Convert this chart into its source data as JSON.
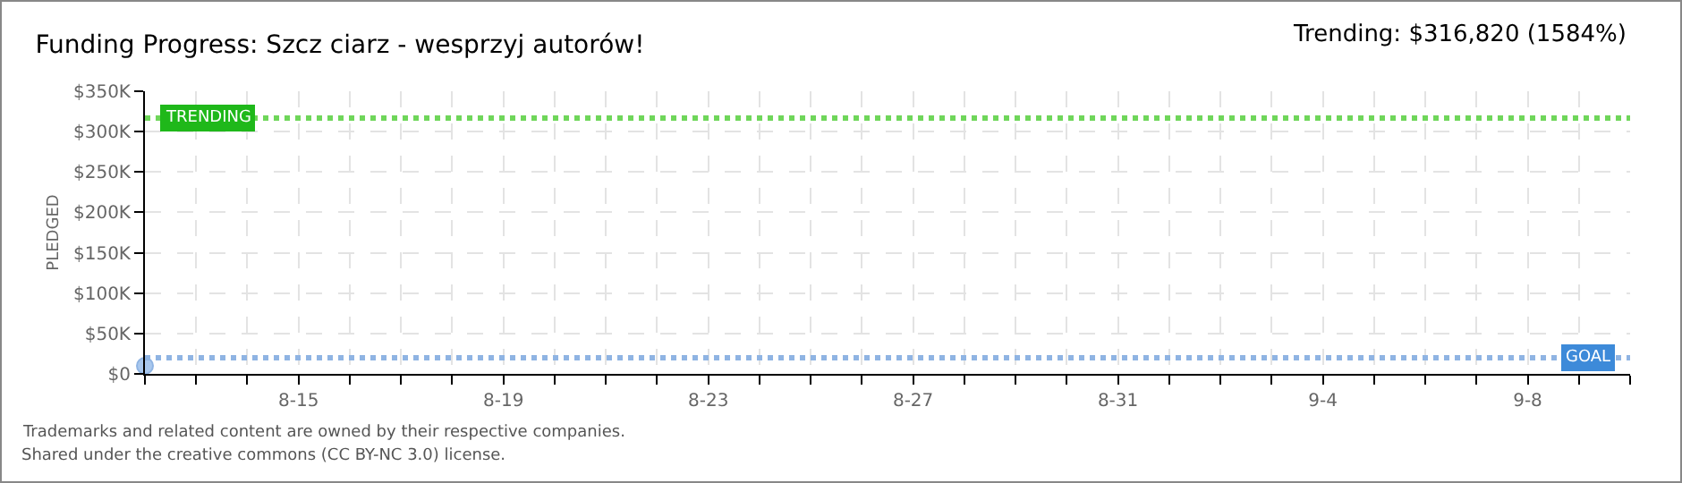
{
  "chart_data": {
    "type": "line",
    "title": "Funding Progress: Szcz ciarz - wesprzyj autorów!",
    "ylabel": "PLEDGED",
    "x": [
      "--08-12"
    ],
    "series": [
      {
        "color": "#a9c8ee",
        "values": [
          10000
        ]
      }
    ],
    "marker": "circle",
    "xlim": [
      "--08-12",
      "--09-10"
    ],
    "xticks": [
      {
        "value": "--08-12",
        "label": null
      },
      {
        "value": "--08-13",
        "label": null
      },
      {
        "value": "--08-14",
        "label": null
      },
      {
        "value": "--08-15",
        "label": "8-15"
      },
      {
        "value": "--08-16",
        "label": null
      },
      {
        "value": "--08-17",
        "label": null
      },
      {
        "value": "--08-18",
        "label": null
      },
      {
        "value": "--08-19",
        "label": "8-19"
      },
      {
        "value": "--08-20",
        "label": null
      },
      {
        "value": "--08-21",
        "label": null
      },
      {
        "value": "--08-22",
        "label": null
      },
      {
        "value": "--08-23",
        "label": "8-23"
      },
      {
        "value": "--08-24",
        "label": null
      },
      {
        "value": "--08-25",
        "label": null
      },
      {
        "value": "--08-26",
        "label": null
      },
      {
        "value": "--08-27",
        "label": "8-27"
      },
      {
        "value": "--08-28",
        "label": null
      },
      {
        "value": "--08-29",
        "label": null
      },
      {
        "value": "--08-30",
        "label": null
      },
      {
        "value": "--08-31",
        "label": "8-31"
      },
      {
        "value": "--09-01",
        "label": null
      },
      {
        "value": "--09-02",
        "label": null
      },
      {
        "value": "--09-03",
        "label": null
      },
      {
        "value": "--09-04",
        "label": "9-4"
      },
      {
        "value": "--09-05",
        "label": null
      },
      {
        "value": "--09-06",
        "label": null
      },
      {
        "value": "--09-07",
        "label": null
      },
      {
        "value": "--09-08",
        "label": "9-8"
      },
      {
        "value": "--09-09",
        "label": null
      },
      {
        "value": "--09-10",
        "label": null
      }
    ],
    "ylim": [
      0,
      350000
    ],
    "yticks": [
      {
        "value": 0,
        "label": "$0"
      },
      {
        "value": 50000,
        "label": "$50K"
      },
      {
        "value": 100000,
        "label": "$100K"
      },
      {
        "value": 150000,
        "label": "$150K"
      },
      {
        "value": 200000,
        "label": "$200K"
      },
      {
        "value": 250000,
        "label": "$250K"
      },
      {
        "value": 300000,
        "label": "$300K"
      },
      {
        "value": 350000,
        "label": "$350K"
      }
    ],
    "grid": true,
    "ref_lines": [
      {
        "axis": "y",
        "value": 316820,
        "label": "TRENDING",
        "color": "#6fd65a",
        "line_style": "dotted"
      },
      {
        "axis": "y",
        "value": 20000,
        "label": "GOAL",
        "color": "#8fb4e3",
        "line_style": "dotted"
      }
    ],
    "annotations": [
      "Trending: $316,820 (1584%)",
      "Trademarks and related content are owned by their respective companies.",
      "Shared under the creative commons (CC BY-NC 3.0) license."
    ]
  }
}
